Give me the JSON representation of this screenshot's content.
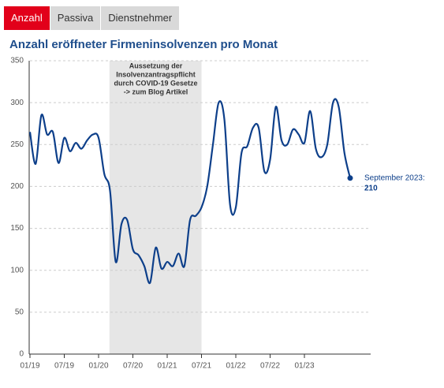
{
  "tabs": [
    "Anzahl",
    "Passiva",
    "Dienstnehmer"
  ],
  "chart_data": {
    "type": "line",
    "title": "Anzahl eröffneter Firmeninsolvenzen pro Monat",
    "categories": [
      "01/19",
      null,
      null,
      null,
      null,
      null,
      "07/19",
      null,
      null,
      null,
      null,
      null,
      "01/20",
      null,
      null,
      null,
      null,
      null,
      "07/20",
      null,
      null,
      null,
      null,
      null,
      "01/21",
      null,
      null,
      null,
      null,
      null,
      "07/21",
      null,
      null,
      null,
      null,
      null,
      "01/22",
      null,
      null,
      null,
      null,
      null,
      "07/22",
      null,
      null,
      null,
      null,
      null,
      "01/23",
      null,
      null,
      null,
      null,
      null,
      null,
      null,
      null
    ],
    "values": [
      265,
      227,
      285,
      262,
      265,
      228,
      258,
      242,
      252,
      245,
      255,
      262,
      258,
      215,
      195,
      110,
      155,
      160,
      125,
      118,
      105,
      85,
      127,
      102,
      110,
      105,
      120,
      105,
      160,
      165,
      175,
      200,
      250,
      300,
      280,
      178,
      175,
      240,
      248,
      270,
      270,
      218,
      232,
      295,
      255,
      250,
      268,
      262,
      252,
      290,
      245,
      235,
      250,
      300,
      295,
      240,
      210
    ],
    "color": "#0d3f8a",
    "ylim": [
      0,
      350
    ],
    "yticks": [
      0,
      50,
      100,
      150,
      200,
      250,
      300,
      350
    ],
    "grid": true,
    "annotation": [
      "Aussetzung der",
      "Insolvenzantragspflicht",
      "durch COVID-19 Gesetze",
      "-> zum Blog Artikel"
    ],
    "end_label": "September 2023:"
  }
}
